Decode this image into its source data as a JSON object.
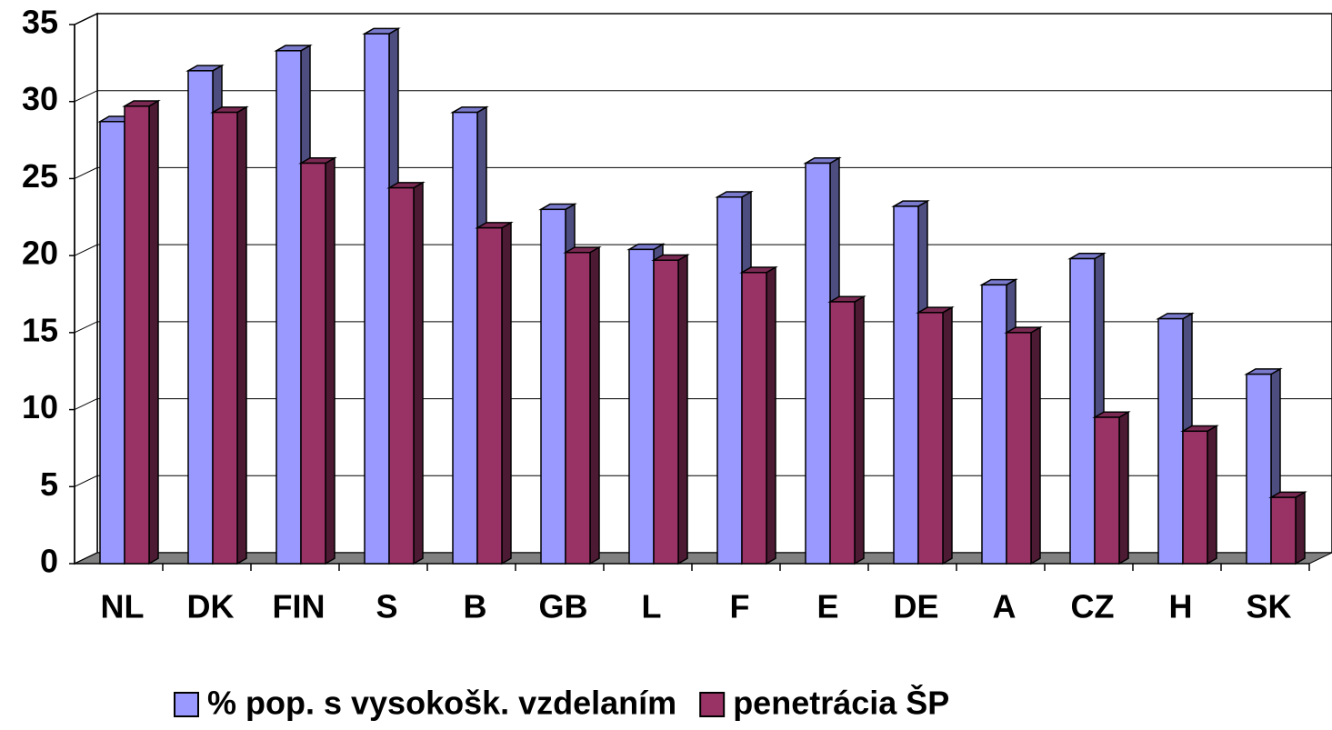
{
  "chart_data": {
    "type": "bar3d",
    "categories": [
      "NL",
      "DK",
      "FIN",
      "S",
      "B",
      "GB",
      "L",
      "F",
      "E",
      "DE",
      "A",
      "CZ",
      "H",
      "SK"
    ],
    "series": [
      {
        "name": "% pop. s vysokošk. vzdelaním",
        "color": "#9999ff",
        "values": [
          28.7,
          32,
          33.3,
          34.4,
          29.3,
          23,
          20.4,
          23.8,
          26,
          23.2,
          18.1,
          19.8,
          15.9,
          12.3
        ]
      },
      {
        "name": "penetrácia ŠP",
        "color": "#993366",
        "values": [
          29.7,
          29.3,
          26,
          24.4,
          21.8,
          20.2,
          19.7,
          18.9,
          17,
          16.3,
          15,
          9.5,
          8.6,
          4.3
        ]
      }
    ],
    "ylim": [
      0,
      35
    ],
    "yticks": [
      0,
      5,
      10,
      15,
      20,
      25,
      30,
      35
    ],
    "grid": true,
    "legend": "bottom"
  }
}
